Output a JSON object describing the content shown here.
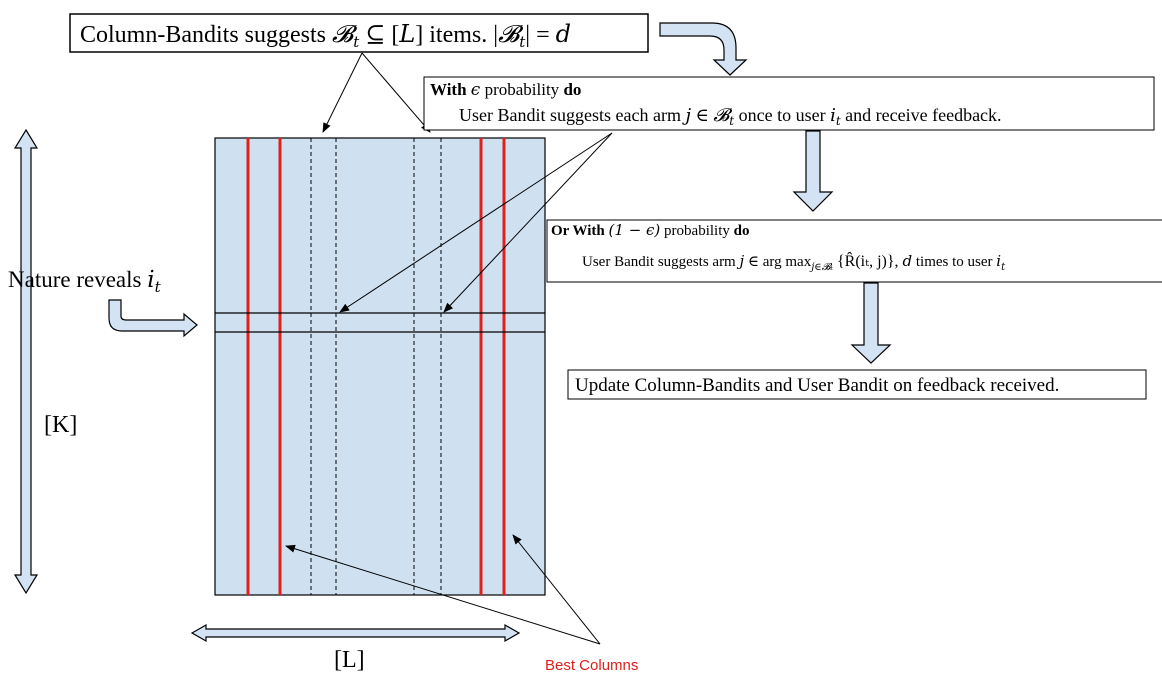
{
  "top_box": {
    "prefix": "Column-Bandits suggests ",
    "math1": "𝓑",
    "sub1": "t",
    "mid": " ⊆ [",
    "L": "L",
    "after": "] items. |",
    "math2": "𝓑",
    "sub2": "t",
    "eq": "| = ",
    "d": "d"
  },
  "epsilon_box": {
    "line1_bold": "With",
    "line1_math": "ϵ",
    "line1_rest": "probability",
    "line1_do": "do",
    "line2_prefix": "User Bandit suggests each arm ",
    "line2_j": "j",
    "line2_in": " ∈ ",
    "line2_B": "𝓑",
    "line2_Bsub": "t",
    "line2_mid": " once to user ",
    "line2_i": "i",
    "line2_isub": "t",
    "line2_end": " and receive feedback."
  },
  "one_minus_box": {
    "line1_bold": "Or With",
    "line1_math": "(1 − ϵ)",
    "line1_rest": "probability",
    "line1_do": "do",
    "line2_prefix": "User Bandit suggests arm ",
    "line2_j": "j",
    "line2_in": " ∈ arg max",
    "line2_sub": "j∈𝓑ₜ",
    "line2_brace": " {R̂(iₜ, j)}, ",
    "line2_d": "d",
    "line2_mid": " times to user ",
    "line2_i": "i",
    "line2_isub": "t"
  },
  "update_box": {
    "text": "Update Column-Bandits and User Bandit on feedback received."
  },
  "nature": {
    "text": "Nature reveals ",
    "i": "i",
    "isub": "t"
  },
  "labels": {
    "K": "[K]",
    "L": "[L]",
    "best": "Best Columns"
  },
  "colors": {
    "matrix_fill": "#cfe0f1",
    "arrow_fill": "#d3e3f3",
    "best_line": "#e0201b",
    "best_text": "#e0201b"
  }
}
